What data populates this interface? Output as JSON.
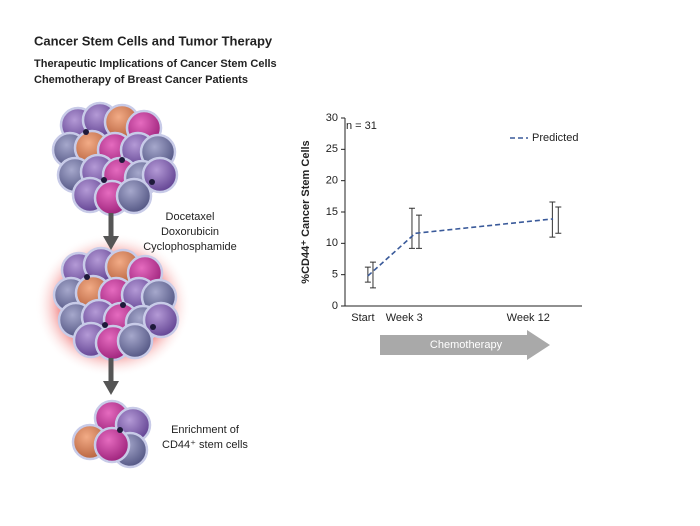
{
  "header": {
    "title": "Cancer Stem Cells and Tumor Therapy",
    "subtitle": [
      "Therapeutic Implications of Cancer Stem Cells",
      "Chemotherapy of Breast Cancer Patients"
    ]
  },
  "diagram": {
    "treatment": [
      "Docetaxel",
      "Doxorubicin",
      "Cyclophosphamide"
    ],
    "outcome": [
      "Enrichment of",
      "CD44⁺ stem cells"
    ],
    "phase_arrow": "Chemotherapy"
  },
  "chart_data": {
    "type": "line",
    "ylabel": "%CD44⁺ Cancer Stem Cells",
    "annotation": "n = 31",
    "xlim": [
      -1.3,
      15.9
    ],
    "xticks": [
      {
        "value": 0,
        "label": "Start"
      },
      {
        "value": 3,
        "label": "Week 3"
      },
      {
        "value": 12,
        "label": "Week 12"
      }
    ],
    "ylim": [
      0,
      30
    ],
    "yticks": [
      0,
      5,
      10,
      15,
      20,
      25,
      30
    ],
    "legend": "upper right",
    "series": [
      {
        "name": "Predicted",
        "color": "#3a5a9a",
        "dashed": true,
        "x": [
          0.36,
          3.8,
          13.8
        ],
        "values": [
          4.8,
          11.6,
          13.9
        ]
      }
    ],
    "error_bars": [
      {
        "color": "#333333",
        "x": [
          0.36,
          3.56,
          13.75
        ],
        "lower": [
          3.8,
          9.2,
          11.0
        ],
        "upper": [
          6.2,
          15.6,
          16.6
        ]
      },
      {
        "color": "#333333",
        "x": [
          0.73,
          4.07,
          14.18
        ],
        "lower": [
          2.9,
          9.2,
          11.6
        ],
        "upper": [
          7.0,
          14.5,
          15.8
        ]
      }
    ]
  }
}
